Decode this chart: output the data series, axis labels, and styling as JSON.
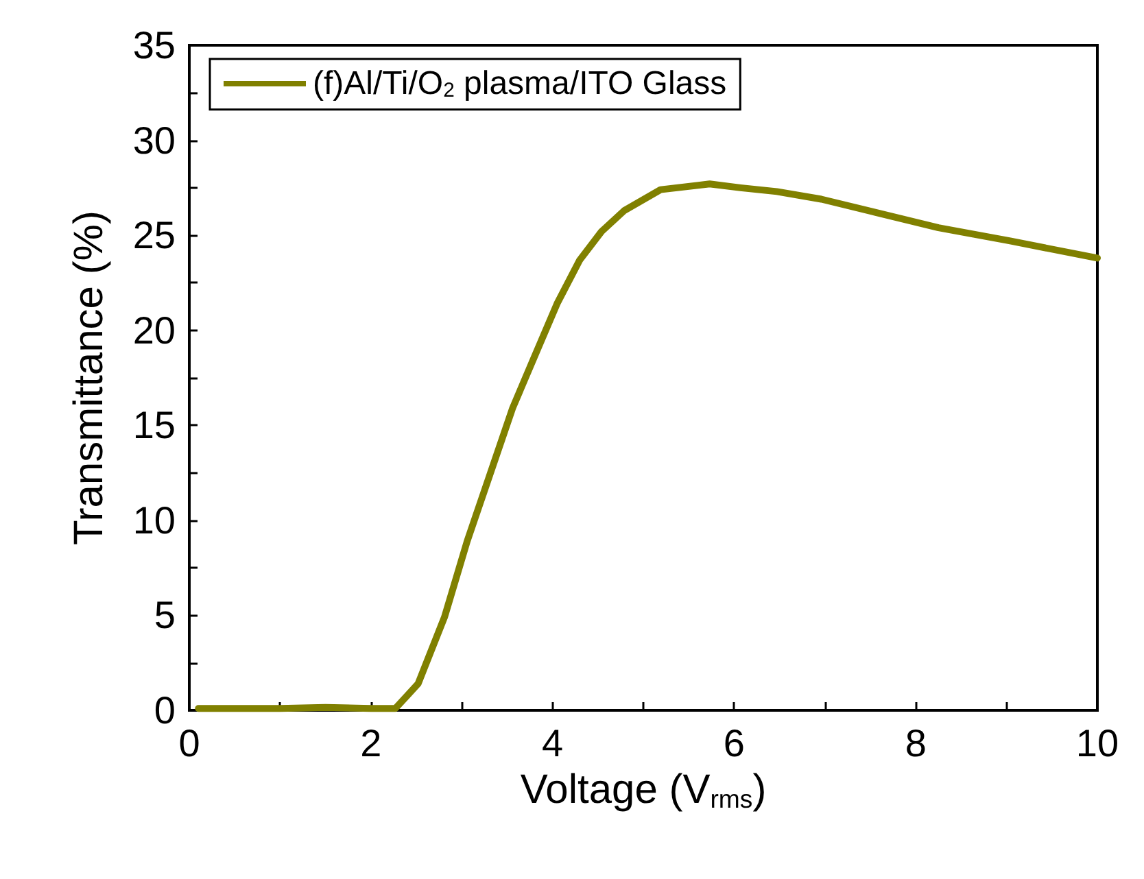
{
  "chart_data": {
    "type": "line",
    "xlabel": "Voltage (V$_{rms}$)",
    "ylabel": "Transmittance (%)",
    "xlim": [
      0,
      10
    ],
    "ylim": [
      0,
      35
    ],
    "xticks": [
      0,
      {
        "value": 1,
        "label": null
      },
      2,
      {
        "value": 3,
        "label": null
      },
      4,
      {
        "value": 5,
        "label": null
      },
      6,
      {
        "value": 7,
        "label": null
      },
      8,
      {
        "value": 9,
        "label": null
      },
      10
    ],
    "yticks": [
      0,
      {
        "value": 2.5,
        "label": null
      },
      5,
      {
        "value": 7.5,
        "label": null
      },
      10,
      {
        "value": 12.5,
        "label": null
      },
      15,
      {
        "value": 17.5,
        "label": null
      },
      20,
      {
        "value": 22.5,
        "label": null
      },
      25,
      {
        "value": 27.5,
        "label": null
      },
      30,
      {
        "value": 32.5,
        "label": null
      },
      35
    ],
    "grid": false,
    "legend": "top left",
    "marker": "none",
    "line_style": "solid",
    "series": [
      {
        "name": "(f)Al/Ti/O$_{2}$ plasma/ITO Glass",
        "color": "#808000",
        "x": [
          0.1,
          1.0,
          1.5,
          2.0,
          2.27,
          2.52,
          2.81,
          3.06,
          3.31,
          3.56,
          3.8,
          4.05,
          4.3,
          4.54,
          4.79,
          5.19,
          5.73,
          6.07,
          6.47,
          6.96,
          7.56,
          8.25,
          9.04,
          10
        ],
        "values": [
          0.1,
          0.1,
          0.15,
          0.1,
          0.1,
          1.4,
          4.9,
          8.9,
          12.4,
          15.9,
          18.6,
          21.4,
          23.7,
          25.2,
          26.3,
          27.4,
          27.7,
          27.5,
          27.3,
          26.9,
          26.2,
          25.4,
          24.7,
          23.8
        ]
      }
    ]
  }
}
